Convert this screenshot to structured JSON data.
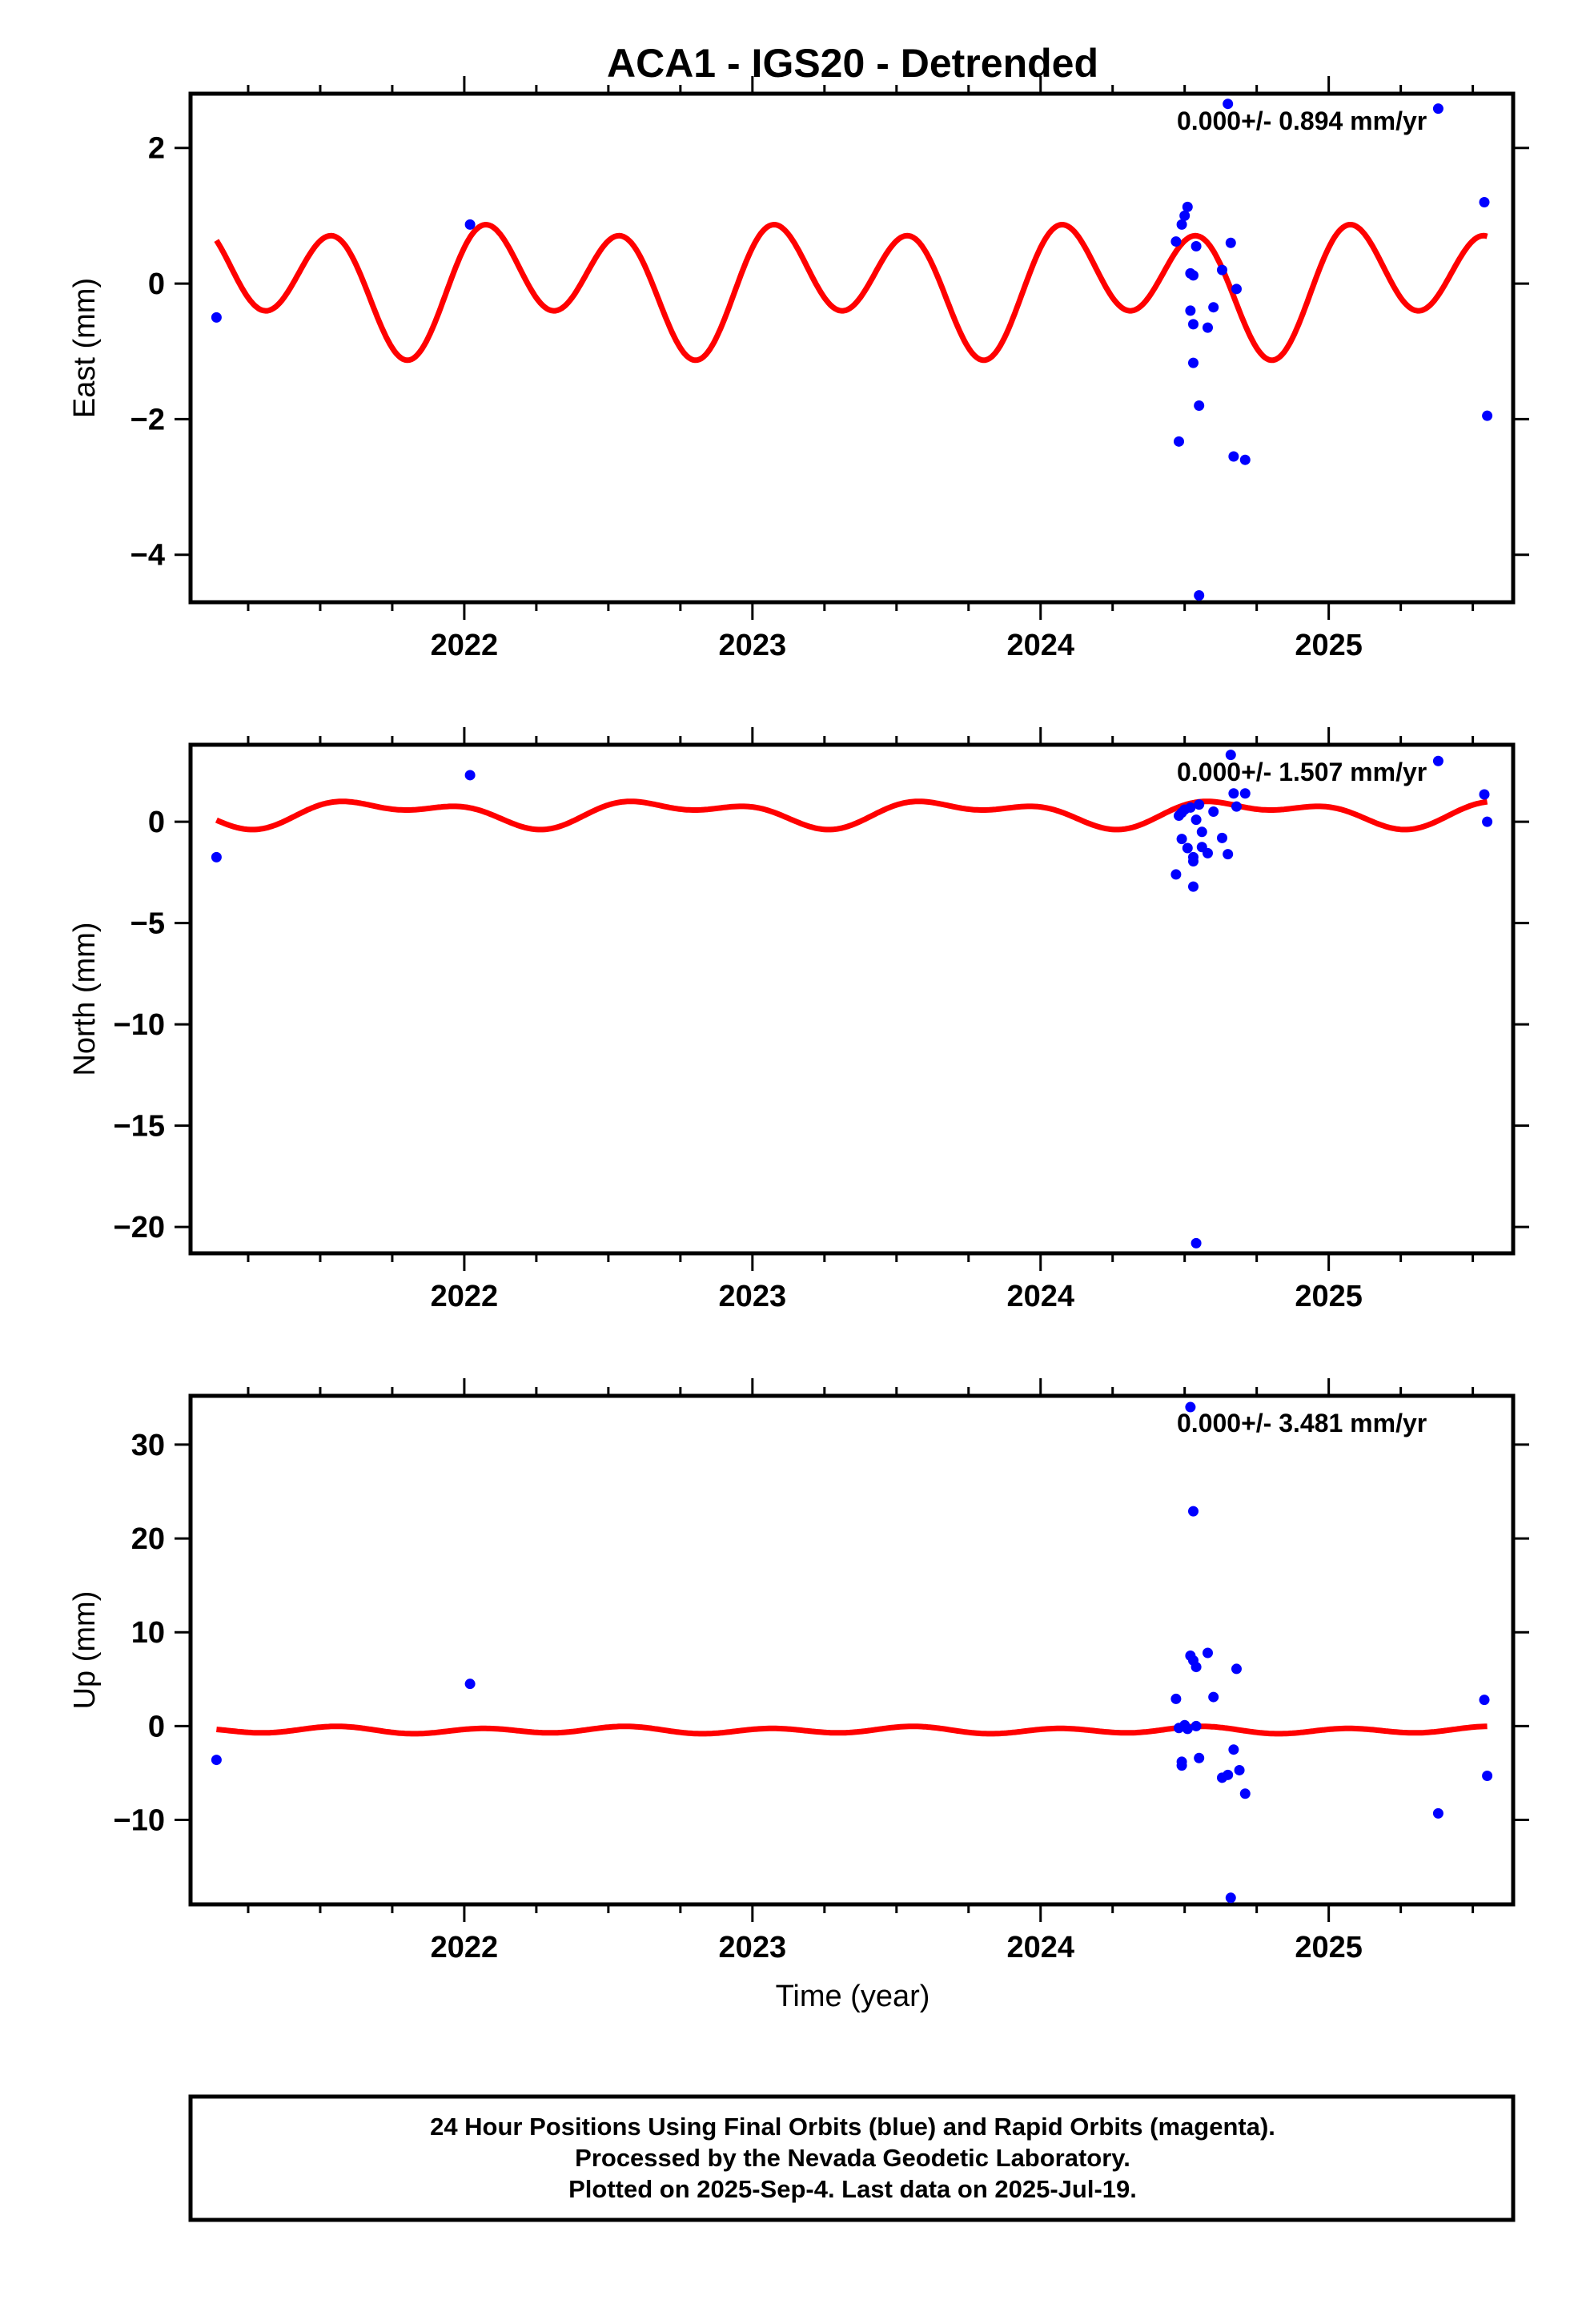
{
  "title": "ACA1 - IGS20 - Detrended",
  "xlabel": "Time (year)",
  "caption": [
    "24 Hour Positions Using Final Orbits (blue) and Rapid Orbits (magenta).",
    "Processed by the Nevada Geodetic Laboratory.",
    "Plotted on 2025-Sep-4. Last data on 2025-Jul-19."
  ],
  "colors": {
    "points": "#0000ff",
    "model": "#ff0000",
    "frame": "#000000"
  },
  "chart_data": [
    {
      "type": "scatter",
      "ylabel": "East (mm)",
      "rate_annotation": "0.000+/- 0.894 mm/yr",
      "xlim": [
        2021.05,
        2025.64
      ],
      "ylim": [
        -4.7,
        2.8
      ],
      "xticks": [
        2022,
        2023,
        2024,
        2025
      ],
      "yticks": [
        2,
        0,
        -2,
        -4
      ],
      "ytick_labels": [
        "2",
        "0",
        "−2",
        "−4"
      ],
      "series": [
        {
          "kind": "points",
          "x": [
            2021.14,
            2022.02,
            2024.47,
            2024.48,
            2024.49,
            2024.5,
            2024.51,
            2024.52,
            2024.52,
            2024.53,
            2024.53,
            2024.53,
            2024.54,
            2024.55,
            2024.55,
            2024.58,
            2024.6,
            2024.63,
            2024.65,
            2024.66,
            2024.67,
            2024.68,
            2024.71,
            2025.38,
            2025.54,
            2025.55
          ],
          "y": [
            -0.5,
            0.87,
            0.62,
            -2.33,
            0.87,
            1.0,
            1.13,
            0.15,
            -0.4,
            0.12,
            -0.6,
            -1.17,
            0.55,
            -1.8,
            -4.6,
            -0.65,
            -0.35,
            0.2,
            2.65,
            0.6,
            -2.55,
            -0.08,
            -2.6,
            2.58,
            1.2,
            -1.95
          ]
        },
        {
          "kind": "model",
          "mean": 0.0,
          "harmonics": [
            [
              0.37,
              -0.05
            ],
            [
              0.5,
              0.58
            ]
          ],
          "x_range": [
            2021.14,
            2025.55
          ]
        }
      ]
    },
    {
      "type": "scatter",
      "ylabel": "North (mm)",
      "rate_annotation": "0.000+/- 1.507 mm/yr",
      "xlim": [
        2021.05,
        2025.64
      ],
      "ylim": [
        -21.3,
        3.8
      ],
      "xticks": [
        2022,
        2023,
        2024,
        2025
      ],
      "yticks": [
        0,
        -5,
        -10,
        -15,
        -20
      ],
      "ytick_labels": [
        "0",
        "−5",
        "−10",
        "−15",
        "−20"
      ],
      "series": [
        {
          "kind": "points",
          "x": [
            2021.14,
            2022.02,
            2024.47,
            2024.48,
            2024.49,
            2024.49,
            2024.5,
            2024.51,
            2024.52,
            2024.53,
            2024.53,
            2024.53,
            2024.54,
            2024.54,
            2024.55,
            2024.56,
            2024.56,
            2024.58,
            2024.6,
            2024.63,
            2024.65,
            2024.66,
            2024.67,
            2024.68,
            2024.71,
            2025.38,
            2025.54,
            2025.55
          ],
          "y": [
            -1.75,
            2.3,
            -2.6,
            0.3,
            -0.85,
            0.45,
            0.6,
            -1.3,
            0.7,
            -1.95,
            -1.75,
            -3.2,
            -20.8,
            0.1,
            0.85,
            -0.5,
            -1.25,
            -1.55,
            0.5,
            -0.8,
            -1.6,
            3.3,
            1.4,
            0.75,
            1.4,
            3.0,
            1.35,
            0.0
          ]
        },
        {
          "kind": "model",
          "mean": 0.45,
          "harmonics": [
            [
              -0.5,
              -0.05
            ],
            [
              0.11,
              0.33
            ]
          ],
          "x_range": [
            2021.14,
            2025.55
          ]
        }
      ]
    },
    {
      "type": "scatter",
      "ylabel": "Up (mm)",
      "rate_annotation": "0.000+/- 3.481 mm/yr",
      "xlim": [
        2021.05,
        2025.64
      ],
      "ylim": [
        -19.0,
        35.2
      ],
      "xticks": [
        2022,
        2023,
        2024,
        2025
      ],
      "yticks": [
        30,
        20,
        10,
        0,
        -10
      ],
      "ytick_labels": [
        "30",
        "20",
        "10",
        "0",
        "−10"
      ],
      "series": [
        {
          "kind": "points",
          "x": [
            2021.14,
            2022.02,
            2024.47,
            2024.48,
            2024.49,
            2024.49,
            2024.5,
            2024.51,
            2024.52,
            2024.52,
            2024.53,
            2024.53,
            2024.54,
            2024.54,
            2024.55,
            2024.58,
            2024.6,
            2024.63,
            2024.65,
            2024.66,
            2024.67,
            2024.68,
            2024.69,
            2024.71,
            2025.38,
            2025.54,
            2025.55
          ],
          "y": [
            -3.6,
            4.5,
            2.9,
            -0.2,
            -3.8,
            -4.2,
            0.1,
            -0.3,
            7.5,
            34.0,
            7.0,
            22.9,
            0.0,
            6.3,
            -3.4,
            7.8,
            3.1,
            -5.5,
            -5.2,
            -18.3,
            -2.5,
            6.1,
            -4.7,
            -7.2,
            -9.3,
            2.8,
            -5.3
          ]
        },
        {
          "kind": "model",
          "mean": -0.45,
          "harmonics": [
            [
              0.0,
              -0.12
            ],
            [
              0.22,
              0.22
            ]
          ],
          "x_range": [
            2021.14,
            2025.55
          ]
        }
      ]
    }
  ]
}
